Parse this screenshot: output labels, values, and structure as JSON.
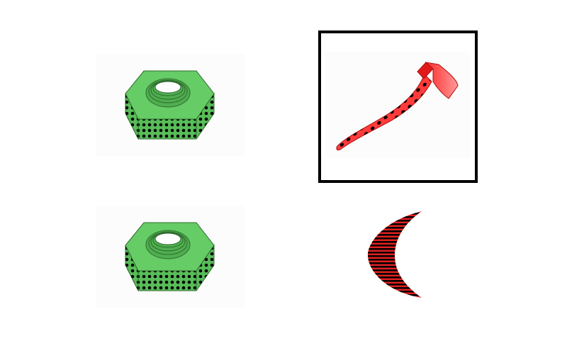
{
  "colors": {
    "background": "#ffffff",
    "nut_fill": "#61c961",
    "nut_stroke": "#2f6b2f",
    "axe_fill": "#ff2b2b",
    "moon_fill": "#e02020",
    "stripe_and_dot": "#000000",
    "selection_border": "#000000"
  },
  "grid": {
    "items": [
      {
        "icon": "hex-nut-icon",
        "pattern": "dots",
        "color": "green",
        "selected": false
      },
      {
        "icon": "axe-icon",
        "pattern": "dots",
        "color": "red",
        "selected": true
      },
      {
        "icon": "hex-nut-icon",
        "pattern": "dots",
        "color": "green",
        "selected": false
      },
      {
        "icon": "crescent-moon-icon",
        "pattern": "horizontal-stripes",
        "color": "red",
        "selected": false
      }
    ]
  }
}
